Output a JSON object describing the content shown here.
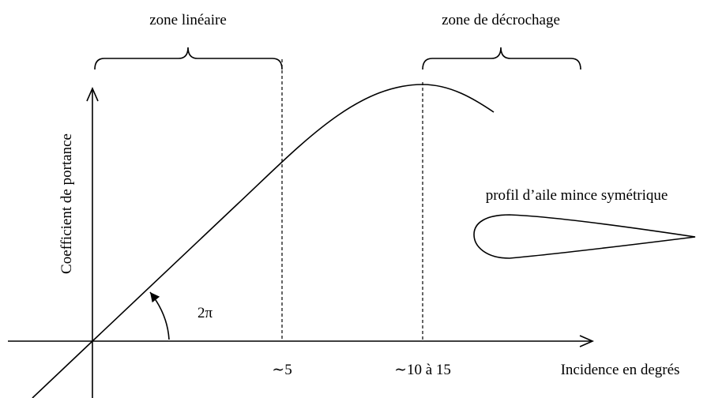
{
  "header": {
    "linear_zone": "zone linéaire",
    "stall_zone": "zone de décrochage"
  },
  "axes": {
    "y_label": "Coefficient de portance",
    "x_label": "Incidence en degrés"
  },
  "markers": {
    "first": "∼5",
    "second": "∼10 à 15"
  },
  "slope_label": "2π",
  "airfoil_label": "profil d’aile mince symétrique"
}
